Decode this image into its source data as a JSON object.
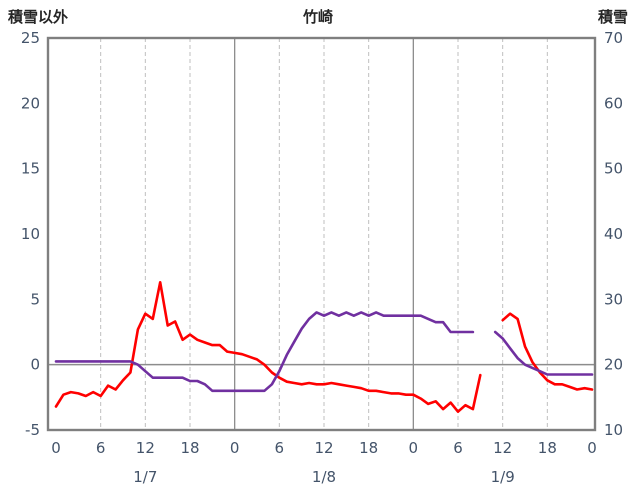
{
  "header": {
    "left_axis_title": "積雪以外",
    "chart_title": "竹崎",
    "right_axis_title": "積雪"
  },
  "colors": {
    "series_other": "#ff0000",
    "series_snow": "#7030a0",
    "plot_border": "#7f7f7f",
    "grid_dashed": "#bfbfbf",
    "grid_solid": "#8c8c8c",
    "tick_text": "#44546a",
    "title_text": "#262626"
  },
  "chart_data": {
    "type": "line",
    "title": "竹崎",
    "left_axis": {
      "label": "積雪以外",
      "min": -5,
      "max": 25,
      "ticks": [
        25,
        20,
        15,
        10,
        5,
        0,
        -5
      ]
    },
    "right_axis": {
      "label": "積雪",
      "min": 10,
      "max": 70,
      "ticks": [
        70,
        60,
        50,
        40,
        30,
        20,
        10
      ]
    },
    "x_axis": {
      "unit": "hour",
      "range_hours": [
        0,
        72
      ],
      "ticks": [
        {
          "hour": 0,
          "label": "0"
        },
        {
          "hour": 6,
          "label": "6"
        },
        {
          "hour": 12,
          "label": "12"
        },
        {
          "hour": 18,
          "label": "18"
        },
        {
          "hour": 24,
          "label": "0"
        },
        {
          "hour": 30,
          "label": "6"
        },
        {
          "hour": 36,
          "label": "12"
        },
        {
          "hour": 42,
          "label": "18"
        },
        {
          "hour": 48,
          "label": "0"
        },
        {
          "hour": 54,
          "label": "6"
        },
        {
          "hour": 60,
          "label": "12"
        },
        {
          "hour": 66,
          "label": "18"
        },
        {
          "hour": 72,
          "label": "0"
        }
      ],
      "day_labels": [
        {
          "hour": 12,
          "label": "1/7"
        },
        {
          "hour": 36,
          "label": "1/8"
        },
        {
          "hour": 60,
          "label": "1/9"
        }
      ]
    },
    "grid": {
      "vertical_dashed_hours": [
        6,
        12,
        18,
        30,
        36,
        42,
        54,
        60,
        66
      ],
      "vertical_solid_hours": [
        24,
        48
      ],
      "horizontal_zero_line_left_value": 0
    },
    "series": [
      {
        "name": "積雪以外",
        "axis": "left",
        "color": "#ff0000",
        "values": [
          -3.2,
          -2.3,
          -2.1,
          -2.2,
          -2.4,
          -2.1,
          -2.4,
          -1.6,
          -1.9,
          -1.2,
          -0.6,
          2.7,
          3.9,
          3.5,
          6.3,
          3.0,
          3.3,
          1.9,
          2.3,
          1.9,
          1.7,
          1.5,
          1.5,
          1.0,
          0.9,
          0.8,
          0.6,
          0.4,
          0.0,
          -0.6,
          -1.0,
          -1.3,
          -1.4,
          -1.5,
          -1.4,
          -1.5,
          -1.5,
          -1.4,
          -1.5,
          -1.6,
          -1.7,
          -1.8,
          -2.0,
          -2.0,
          -2.1,
          -2.2,
          -2.2,
          -2.3,
          -2.3,
          -2.6,
          -3.0,
          -2.8,
          -3.4,
          -2.9,
          -3.6,
          -3.1,
          -3.4,
          -0.8,
          null,
          null,
          3.4,
          3.9,
          3.5,
          1.4,
          0.2,
          -0.6,
          -1.2,
          -1.5,
          -1.5,
          -1.7,
          -1.9,
          -1.8,
          -1.9
        ]
      },
      {
        "name": "積雪",
        "axis": "right",
        "color": "#7030a0",
        "values": [
          20.5,
          20.5,
          20.5,
          20.5,
          20.5,
          20.5,
          20.5,
          20.5,
          20.5,
          20.5,
          20.5,
          20.0,
          19.0,
          18.0,
          18.0,
          18.0,
          18.0,
          18.0,
          17.5,
          17.5,
          17.0,
          16.0,
          16.0,
          16.0,
          16.0,
          16.0,
          16.0,
          16.0,
          16.0,
          17.0,
          19.0,
          21.5,
          23.5,
          25.5,
          27.0,
          28.0,
          27.5,
          28.0,
          27.5,
          28.0,
          27.5,
          28.0,
          27.5,
          28.0,
          27.5,
          27.5,
          27.5,
          27.5,
          27.5,
          27.5,
          27.0,
          26.5,
          26.5,
          25.0,
          25.0,
          25.0,
          25.0,
          null,
          null,
          25.0,
          24.0,
          22.5,
          21.0,
          20.0,
          19.5,
          19.0,
          18.5,
          18.5,
          18.5,
          18.5,
          18.5,
          18.5,
          18.5
        ]
      }
    ]
  }
}
